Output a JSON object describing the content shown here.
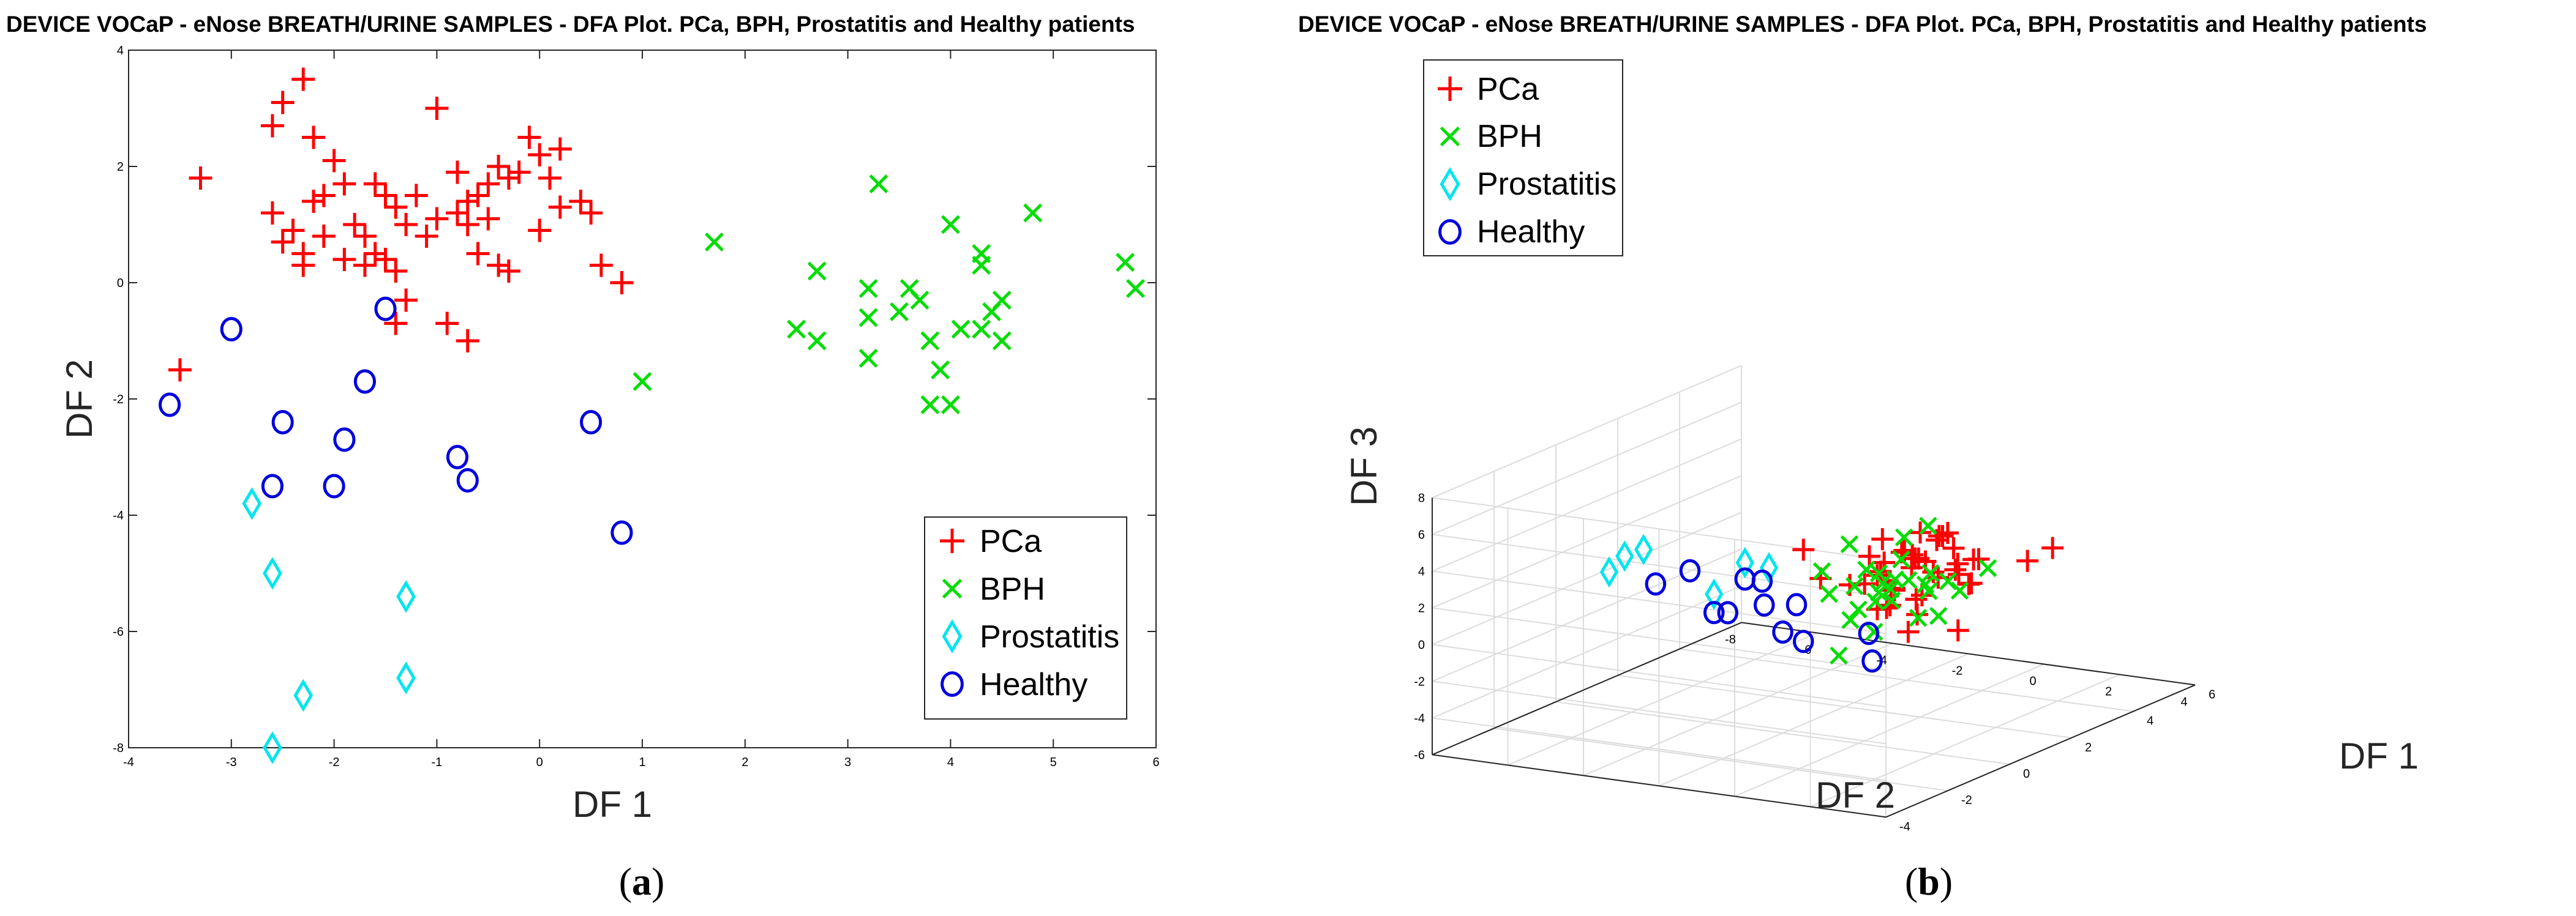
{
  "colors": {
    "PCa": "#ff0000",
    "BPH": "#00dd00",
    "Prostatitis": "#00e5ee",
    "Healthy": "#0000dd"
  },
  "chart_data": [
    {
      "id": "a",
      "type": "scatter",
      "title": "DEVICE VOCaP - eNose BREATH/URINE SAMPLES - DFA Plot. PCa, BPH, Prostatitis and Healthy patients",
      "xlabel": "DF 1",
      "ylabel": "DF 2",
      "xlim": [
        -4,
        6
      ],
      "ylim": [
        -8,
        4
      ],
      "xticks": [
        "-4",
        "-3",
        "-2",
        "-1",
        "0",
        "1",
        "2",
        "3",
        "4",
        "5",
        "6"
      ],
      "yticks": [
        "-8",
        "-6",
        "-4",
        "-2",
        "0",
        "2",
        "4"
      ],
      "legend": {
        "location": "bottom-right",
        "entries": [
          "PCa",
          "BPH",
          "Prostatitis",
          "Healthy"
        ]
      },
      "caption": {
        "open": "(",
        "letter": "a",
        "close": ")"
      },
      "series": [
        {
          "name": "PCa",
          "marker": "plus",
          "points": [
            [
              -3.5,
              -1.5
            ],
            [
              -3.3,
              1.8
            ],
            [
              -2.5,
              3.1
            ],
            [
              -2.6,
              2.7
            ],
            [
              -2.3,
              3.5
            ],
            [
              -2.2,
              2.5
            ],
            [
              -2.0,
              2.1
            ],
            [
              -1.9,
              1.7
            ],
            [
              -2.6,
              1.2
            ],
            [
              -2.4,
              0.9
            ],
            [
              -2.3,
              0.5
            ],
            [
              -2.5,
              0.7
            ],
            [
              -2.2,
              1.4
            ],
            [
              -2.1,
              1.5
            ],
            [
              -1.8,
              1.0
            ],
            [
              -1.7,
              0.8
            ],
            [
              -1.6,
              1.7
            ],
            [
              -1.5,
              1.5
            ],
            [
              -1.4,
              1.3
            ],
            [
              -1.3,
              1.0
            ],
            [
              -1.2,
              1.5
            ],
            [
              -1.0,
              1.1
            ],
            [
              -1.1,
              0.8
            ],
            [
              -1.5,
              0.4
            ],
            [
              -1.4,
              0.2
            ],
            [
              -1.7,
              0.3
            ],
            [
              -1.9,
              0.4
            ],
            [
              -2.3,
              0.3
            ],
            [
              -2.1,
              0.8
            ],
            [
              -1.3,
              -0.3
            ],
            [
              -1.0,
              3.0
            ],
            [
              -0.8,
              1.9
            ],
            [
              -0.7,
              1.4
            ],
            [
              -0.6,
              1.5
            ],
            [
              -0.5,
              1.7
            ],
            [
              -0.4,
              2.0
            ],
            [
              -0.3,
              1.8
            ],
            [
              -0.2,
              1.9
            ],
            [
              -0.1,
              2.5
            ],
            [
              0.0,
              2.2
            ],
            [
              0.1,
              1.8
            ],
            [
              -0.5,
              1.1
            ],
            [
              -0.7,
              1.0
            ],
            [
              -0.8,
              1.2
            ],
            [
              -0.4,
              0.3
            ],
            [
              -0.6,
              0.5
            ],
            [
              0.0,
              0.9
            ],
            [
              0.2,
              1.3
            ],
            [
              0.4,
              1.4
            ],
            [
              0.5,
              1.2
            ],
            [
              0.6,
              0.3
            ],
            [
              0.8,
              0.0
            ],
            [
              -0.3,
              0.2
            ],
            [
              -0.9,
              -0.7
            ],
            [
              -0.7,
              -1.0
            ],
            [
              0.2,
              2.3
            ],
            [
              -1.4,
              -0.7
            ],
            [
              -1.6,
              0.5
            ]
          ]
        },
        {
          "name": "BPH",
          "marker": "x",
          "points": [
            [
              1.0,
              -1.7
            ],
            [
              1.7,
              0.7
            ],
            [
              2.5,
              -0.8
            ],
            [
              2.7,
              -1.0
            ],
            [
              2.7,
              0.2
            ],
            [
              3.2,
              -0.1
            ],
            [
              3.2,
              -0.6
            ],
            [
              3.2,
              -1.3
            ],
            [
              3.3,
              1.7
            ],
            [
              3.5,
              -0.5
            ],
            [
              3.6,
              -0.1
            ],
            [
              3.7,
              -0.3
            ],
            [
              3.8,
              -1.0
            ],
            [
              3.8,
              -2.1
            ],
            [
              3.9,
              -1.5
            ],
            [
              4.0,
              -2.1
            ],
            [
              4.0,
              1.0
            ],
            [
              4.1,
              -0.8
            ],
            [
              4.3,
              0.3
            ],
            [
              4.3,
              0.5
            ],
            [
              4.3,
              -0.8
            ],
            [
              4.4,
              -0.5
            ],
            [
              4.5,
              -1.0
            ],
            [
              4.5,
              -0.3
            ],
            [
              4.8,
              1.2
            ],
            [
              5.7,
              0.35
            ],
            [
              5.8,
              -0.1
            ]
          ]
        },
        {
          "name": "Prostatitis",
          "marker": "diamond",
          "points": [
            [
              -2.8,
              -3.8
            ],
            [
              -2.6,
              -5.0
            ],
            [
              -2.3,
              -7.1
            ],
            [
              -2.6,
              -8.0
            ],
            [
              -1.3,
              -5.4
            ],
            [
              -1.3,
              -6.8
            ]
          ]
        },
        {
          "name": "Healthy",
          "marker": "circle",
          "points": [
            [
              -3.6,
              -2.1
            ],
            [
              -3.0,
              -0.8
            ],
            [
              -2.5,
              -2.4
            ],
            [
              -2.6,
              -3.5
            ],
            [
              -2.0,
              -3.5
            ],
            [
              -1.9,
              -2.7
            ],
            [
              -1.7,
              -1.7
            ],
            [
              -1.5,
              -0.45
            ],
            [
              -0.8,
              -3.0
            ],
            [
              -0.7,
              -3.4
            ],
            [
              0.5,
              -2.4
            ],
            [
              0.8,
              -4.3
            ]
          ]
        }
      ]
    },
    {
      "id": "b",
      "type": "scatter",
      "title": "DEVICE VOCaP - eNose BREATH/URINE SAMPLES - DFA Plot. PCa, BPH, Prostatitis and Healthy patients",
      "xlabel": "DF 1",
      "ylabel": "DF 2",
      "zlabel": "DF 3",
      "xlim": [
        -4,
        6
      ],
      "ylim": [
        -8,
        4
      ],
      "zlim": [
        -6,
        8
      ],
      "xticks": [
        "-4",
        "-2",
        "0",
        "2",
        "4",
        "6"
      ],
      "yticks": [
        "-8",
        "-6",
        "-4",
        "-2",
        "0",
        "2",
        "4"
      ],
      "zticks": [
        "-6",
        "-4",
        "-2",
        "0",
        "2",
        "4",
        "6",
        "8"
      ],
      "legend": {
        "location": "top-left",
        "entries": [
          "PCa",
          "BPH",
          "Prostatitis",
          "Healthy"
        ]
      },
      "caption": {
        "open": "(",
        "letter": "b",
        "close": ")"
      },
      "series": [
        {
          "name": "PCa",
          "marker": "plus",
          "points": [
            [
              -1.0,
              1.5,
              5.0
            ],
            [
              -1.5,
              2.0,
              4.5
            ],
            [
              -0.5,
              1.0,
              4.0
            ],
            [
              0.0,
              1.5,
              4.5
            ],
            [
              -1.0,
              2.5,
              3.5
            ],
            [
              -0.5,
              2.0,
              5.0
            ],
            [
              0.5,
              1.0,
              3.5
            ],
            [
              -1.2,
              2.2,
              6.0
            ],
            [
              -0.8,
              1.8,
              5.5
            ],
            [
              0.2,
              2.4,
              4.0
            ],
            [
              -0.3,
              1.2,
              3.0
            ],
            [
              0.7,
              1.5,
              5.0
            ],
            [
              -1.5,
              1.0,
              4.0
            ],
            [
              -0.6,
              2.6,
              4.2
            ],
            [
              0.1,
              1.9,
              3.8
            ],
            [
              -1.1,
              1.4,
              2.5
            ],
            [
              -0.4,
              2.1,
              4.8
            ],
            [
              0.4,
              1.1,
              4.3
            ],
            [
              -2.0,
              2.5,
              4.5
            ],
            [
              -1.8,
              3.0,
              4.0
            ],
            [
              0.8,
              2.0,
              3.2
            ],
            [
              -0.2,
              0.8,
              5.5
            ],
            [
              1.0,
              1.7,
              4.4
            ],
            [
              -1.3,
              1.9,
              3.0
            ],
            [
              0.3,
              2.8,
              4.6
            ],
            [
              -0.9,
              0.9,
              3.6
            ],
            [
              -2.5,
              3.0,
              5.0
            ],
            [
              1.2,
              2.2,
              3.8
            ],
            [
              -3.0,
              1.0,
              7.0
            ],
            [
              2.0,
              0.5,
              4.0
            ],
            [
              1.5,
              1.0,
              4.5
            ],
            [
              -0.7,
              3.2,
              5.2
            ],
            [
              0.6,
              2.5,
              3.0
            ],
            [
              -1.6,
              1.6,
              5.8
            ],
            [
              0.0,
              0.5,
              3.3
            ],
            [
              2.0,
              3.5,
              4.2
            ],
            [
              1.8,
              3.0,
              3.5
            ],
            [
              -2.2,
              0.8,
              4.8
            ],
            [
              0.9,
              0.9,
              5.1
            ],
            [
              -1.4,
              2.7,
              2.8
            ],
            [
              1.0,
              0.5,
              -0.5
            ],
            [
              2.0,
              1.0,
              -1.0
            ],
            [
              1.3,
              1.3,
              4.9
            ],
            [
              -0.1,
              3.0,
              3.6
            ],
            [
              -1.9,
              2.3,
              3.4
            ]
          ]
        },
        {
          "name": "BPH",
          "marker": "x",
          "points": [
            [
              3.0,
              -2.0,
              -1.0
            ],
            [
              2.5,
              -1.5,
              0.0
            ],
            [
              3.5,
              -1.0,
              -0.5
            ],
            [
              2.0,
              -1.0,
              1.0
            ],
            [
              2.8,
              -2.5,
              -2.0
            ],
            [
              3.2,
              -0.5,
              -1.5
            ],
            [
              1.5,
              -2.0,
              0.5
            ],
            [
              2.2,
              -1.8,
              -0.8
            ],
            [
              3.8,
              -1.2,
              0.2
            ],
            [
              2.6,
              -0.8,
              0.8
            ],
            [
              3.0,
              -1.6,
              -0.2
            ],
            [
              1.8,
              -0.5,
              1.5
            ],
            [
              2.4,
              -2.2,
              2.5
            ],
            [
              3.4,
              -1.9,
              -1.2
            ],
            [
              2.9,
              -0.6,
              0.4
            ],
            [
              2.1,
              -1.3,
              -1.8
            ],
            [
              3.6,
              -2.4,
              0.0
            ],
            [
              1.6,
              -1.1,
              2.0
            ],
            [
              2.7,
              -1.0,
              3.0
            ],
            [
              3.3,
              -2.8,
              -0.6
            ],
            [
              2.0,
              -2.6,
              1.2
            ],
            [
              4.0,
              -0.9,
              -0.3
            ],
            [
              2.3,
              -0.3,
              -0.9
            ],
            [
              3.1,
              -1.4,
              1.4
            ],
            [
              4.5,
              -1.0,
              -1.2
            ],
            [
              2.5,
              -0.2,
              4.0
            ],
            [
              1.2,
              -1.5,
              -2.5
            ],
            [
              3.7,
              0.4,
              1.0
            ]
          ]
        },
        {
          "name": "Prostatitis",
          "marker": "diamond",
          "points": [
            [
              0.5,
              -7.0,
              1.0
            ],
            [
              1.0,
              -7.0,
              1.5
            ],
            [
              1.0,
              -6.5,
              2.0
            ],
            [
              2.0,
              -4.0,
              1.0
            ],
            [
              0.0,
              -3.0,
              3.0
            ],
            [
              -1.0,
              -3.0,
              2.0
            ]
          ]
        },
        {
          "name": "Healthy",
          "marker": "circle",
          "points": [
            [
              -3.0,
              -2.0,
              5.0
            ],
            [
              -3.5,
              -2.5,
              4.5
            ],
            [
              -3.0,
              -1.0,
              3.0
            ],
            [
              -2.5,
              -0.5,
              4.5
            ],
            [
              -3.0,
              1.0,
              2.0
            ],
            [
              -2.0,
              0.0,
              3.0
            ],
            [
              -2.2,
              -1.2,
              4.2
            ],
            [
              -2.8,
              -0.2,
              3.5
            ],
            [
              -1.0,
              -3.0,
              1.0
            ],
            [
              0.0,
              -2.0,
              -0.5
            ],
            [
              -1.5,
              1.5,
              1.5
            ],
            [
              -2.0,
              2.0,
              0.5
            ]
          ]
        }
      ]
    }
  ]
}
